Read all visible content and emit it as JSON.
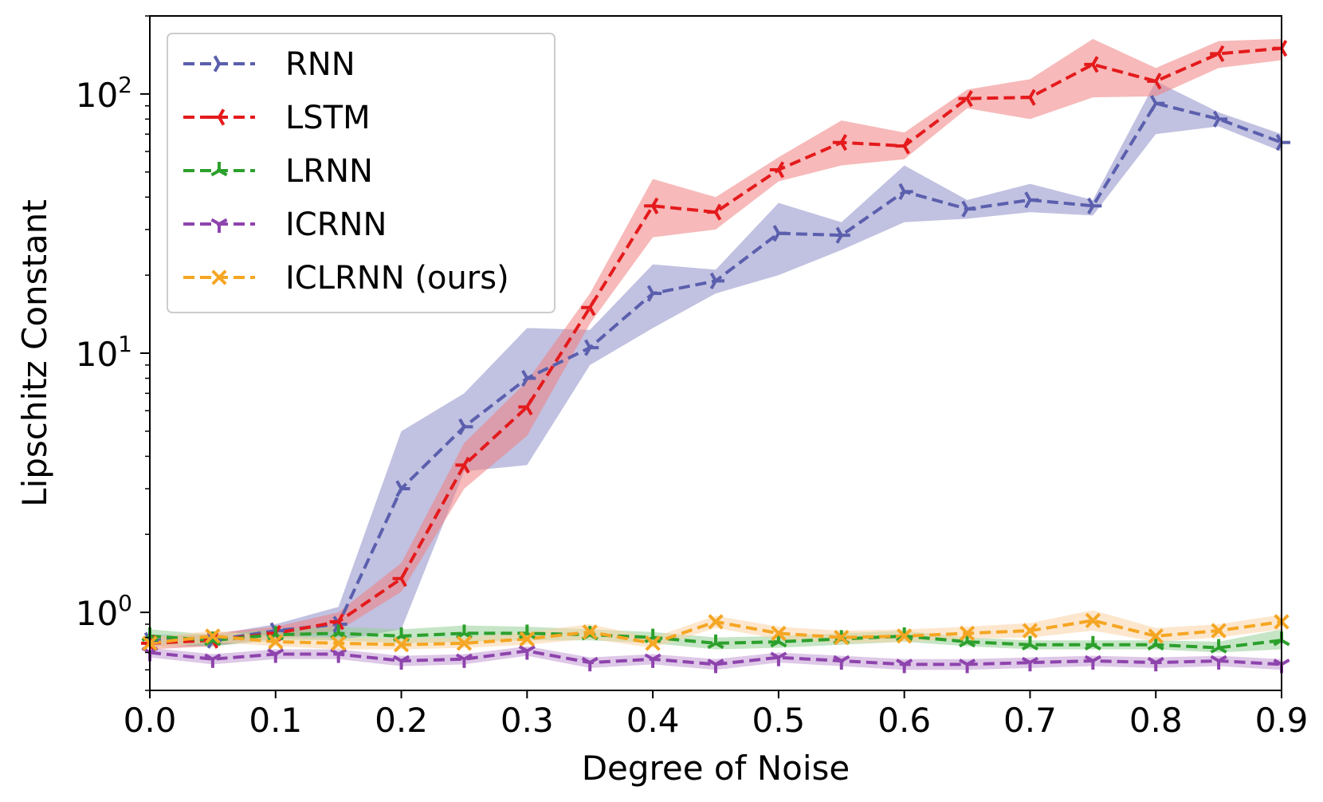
{
  "chart_data": {
    "type": "line",
    "title": "",
    "xlabel": "Degree of Noise",
    "ylabel": "Lipschitz Constant",
    "yscale": "log",
    "xlim": [
      0.0,
      0.9
    ],
    "ylim": [
      0.5,
      200
    ],
    "grid": false,
    "legend_position": "top-left",
    "x": [
      0.0,
      0.05,
      0.1,
      0.15,
      0.2,
      0.25,
      0.3,
      0.35,
      0.4,
      0.45,
      0.5,
      0.55,
      0.6,
      0.65,
      0.7,
      0.75,
      0.8,
      0.85,
      0.9
    ],
    "xticks": [
      {
        "value": 0.0,
        "label": "0.0"
      },
      {
        "value": 0.1,
        "label": "0.1"
      },
      {
        "value": 0.2,
        "label": "0.2"
      },
      {
        "value": 0.3,
        "label": "0.3"
      },
      {
        "value": 0.4,
        "label": "0.4"
      },
      {
        "value": 0.5,
        "label": "0.5"
      },
      {
        "value": 0.6,
        "label": "0.6"
      },
      {
        "value": 0.7,
        "label": "0.7"
      },
      {
        "value": 0.8,
        "label": "0.8"
      },
      {
        "value": 0.9,
        "label": "0.9"
      }
    ],
    "yticks": [
      {
        "value": 1,
        "base": "10",
        "exp": "0"
      },
      {
        "value": 10,
        "base": "10",
        "exp": "1"
      },
      {
        "value": 100,
        "base": "10",
        "exp": "2"
      }
    ],
    "series": [
      {
        "name": "RNN",
        "color": "#5b5fad",
        "band_color": "#8e8ec8",
        "marker": "tri-right",
        "values": [
          0.78,
          0.78,
          0.85,
          0.9,
          3.0,
          5.2,
          8.0,
          10.5,
          17,
          19,
          29,
          28.5,
          42,
          36,
          39,
          37,
          92,
          80,
          65
        ],
        "lower": [
          0.74,
          0.74,
          0.8,
          0.78,
          0.86,
          3.5,
          3.7,
          9.0,
          12.5,
          17,
          20,
          25,
          32,
          33,
          35,
          34,
          70,
          75,
          60
        ],
        "upper": [
          0.82,
          0.82,
          0.9,
          1.05,
          5.0,
          7.0,
          12.5,
          12.3,
          22,
          21,
          38,
          32,
          53,
          39,
          45,
          39,
          112,
          85,
          70
        ]
      },
      {
        "name": "LSTM",
        "color": "#e41a1c",
        "band_color": "#f08080",
        "marker": "tri-left",
        "values": [
          0.76,
          0.78,
          0.83,
          0.92,
          1.35,
          3.7,
          6.2,
          15,
          37,
          35,
          51,
          65,
          63,
          96,
          97,
          130,
          112,
          143,
          150
        ],
        "lower": [
          0.72,
          0.74,
          0.79,
          0.85,
          1.2,
          3.0,
          4.8,
          13,
          28,
          30,
          46,
          53,
          56,
          88,
          80,
          97,
          98,
          126,
          135
        ],
        "upper": [
          0.8,
          0.83,
          0.88,
          1.0,
          1.55,
          4.5,
          7.8,
          17,
          47,
          40,
          57,
          79,
          71,
          104,
          114,
          163,
          126,
          160,
          163
        ]
      },
      {
        "name": "LRNN",
        "color": "#2ca02c",
        "band_color": "#98d098",
        "marker": "tri-up",
        "values": [
          0.81,
          0.78,
          0.82,
          0.83,
          0.81,
          0.83,
          0.83,
          0.82,
          0.8,
          0.76,
          0.77,
          0.79,
          0.81,
          0.77,
          0.75,
          0.75,
          0.75,
          0.73,
          0.78
        ],
        "lower": [
          0.76,
          0.74,
          0.78,
          0.78,
          0.76,
          0.77,
          0.78,
          0.78,
          0.76,
          0.72,
          0.73,
          0.75,
          0.77,
          0.74,
          0.72,
          0.72,
          0.72,
          0.7,
          0.72
        ],
        "upper": [
          0.86,
          0.82,
          0.86,
          0.88,
          0.86,
          0.89,
          0.88,
          0.86,
          0.84,
          0.8,
          0.81,
          0.83,
          0.85,
          0.8,
          0.78,
          0.78,
          0.78,
          0.77,
          0.86
        ]
      },
      {
        "name": "ICRNN",
        "color": "#8e44ad",
        "band_color": "#c39bd3",
        "marker": "tri-down",
        "values": [
          0.7,
          0.66,
          0.69,
          0.69,
          0.65,
          0.66,
          0.71,
          0.64,
          0.66,
          0.63,
          0.67,
          0.65,
          0.63,
          0.63,
          0.64,
          0.65,
          0.64,
          0.65,
          0.63
        ],
        "lower": [
          0.67,
          0.63,
          0.66,
          0.66,
          0.62,
          0.63,
          0.68,
          0.61,
          0.63,
          0.6,
          0.64,
          0.62,
          0.6,
          0.6,
          0.61,
          0.62,
          0.61,
          0.62,
          0.6
        ],
        "upper": [
          0.73,
          0.69,
          0.72,
          0.72,
          0.68,
          0.69,
          0.74,
          0.67,
          0.69,
          0.66,
          0.7,
          0.68,
          0.66,
          0.66,
          0.67,
          0.68,
          0.67,
          0.68,
          0.66
        ]
      },
      {
        "name": "ICLRNN (ours)",
        "color": "#f5a623",
        "band_color": "#f9d4a6",
        "marker": "x",
        "values": [
          0.76,
          0.81,
          0.77,
          0.76,
          0.75,
          0.76,
          0.79,
          0.84,
          0.76,
          0.92,
          0.83,
          0.8,
          0.81,
          0.83,
          0.85,
          0.93,
          0.81,
          0.85,
          0.92
        ],
        "lower": [
          0.72,
          0.77,
          0.74,
          0.72,
          0.72,
          0.73,
          0.75,
          0.79,
          0.73,
          0.87,
          0.79,
          0.76,
          0.77,
          0.79,
          0.8,
          0.85,
          0.77,
          0.8,
          0.86
        ],
        "upper": [
          0.8,
          0.85,
          0.81,
          0.8,
          0.79,
          0.8,
          0.84,
          0.9,
          0.8,
          0.97,
          0.88,
          0.85,
          0.86,
          0.88,
          0.91,
          1.02,
          0.87,
          0.9,
          0.98
        ]
      }
    ]
  }
}
